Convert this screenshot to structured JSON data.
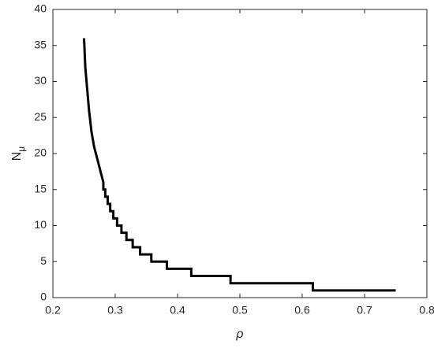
{
  "chart_data": {
    "type": "line",
    "xlabel": "ρ",
    "ylabel": {
      "main": "N",
      "subscript": "μ"
    },
    "x": [
      0.25,
      0.252,
      0.255,
      0.258,
      0.262,
      0.266,
      0.272,
      0.278,
      0.281,
      0.281,
      0.284,
      0.284,
      0.288,
      0.288,
      0.292,
      0.292,
      0.297,
      0.297,
      0.303,
      0.303,
      0.31,
      0.31,
      0.318,
      0.318,
      0.328,
      0.328,
      0.34,
      0.34,
      0.358,
      0.358,
      0.383,
      0.383,
      0.422,
      0.422,
      0.485,
      0.485,
      0.617,
      0.617,
      0.75
    ],
    "series": [
      {
        "color": "#000000",
        "values": [
          36,
          32,
          29,
          26,
          23,
          21,
          19,
          17,
          16,
          15,
          15,
          14,
          14,
          13,
          13,
          12,
          12,
          11,
          11,
          10,
          10,
          9,
          9,
          8,
          8,
          7,
          7,
          6,
          6,
          5,
          5,
          4,
          4,
          3,
          3,
          2,
          2,
          1,
          1
        ]
      }
    ],
    "xlim": [
      0.2,
      0.8
    ],
    "xticks": [
      0.2,
      0.3,
      0.4,
      0.5,
      0.6,
      0.7,
      0.8
    ],
    "ylim": [
      0,
      40
    ],
    "yticks": [
      0,
      5,
      10,
      15,
      20,
      25,
      30,
      35,
      40
    ]
  }
}
